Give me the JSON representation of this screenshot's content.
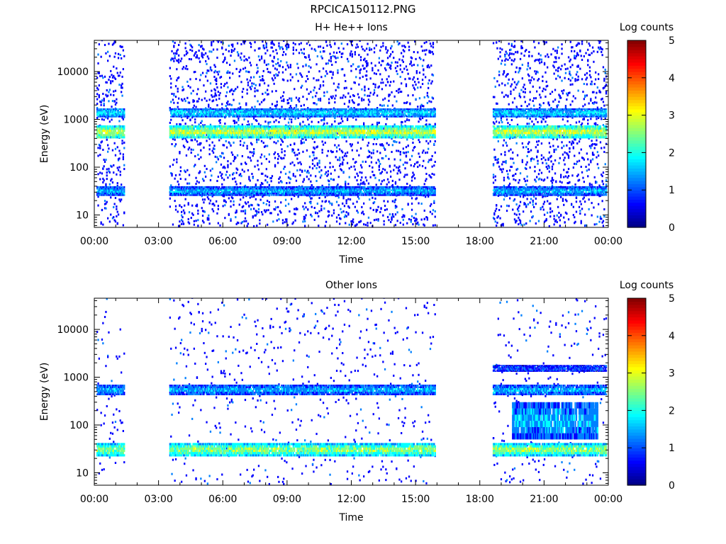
{
  "figure_title": "RPCICA150112.PNG",
  "colors": {
    "colormap": [
      "#000080",
      "#0000ff",
      "#0080ff",
      "#00ffff",
      "#80ff80",
      "#ffff00",
      "#ff8000",
      "#ff0000",
      "#800000"
    ],
    "background": "#ffffff",
    "axis": "#000000"
  },
  "chart_data": [
    {
      "type": "heatmap",
      "title": "H+ He++ Ions",
      "xlabel": "Time",
      "ylabel": "Energy (eV)",
      "x_tick_labels": [
        "00:00",
        "03:00",
        "06:00",
        "09:00",
        "12:00",
        "15:00",
        "18:00",
        "21:00",
        "00:00"
      ],
      "x_range_hours": [
        0,
        24
      ],
      "y_scale": "log",
      "y_range": [
        5.5,
        45000
      ],
      "y_tick_labels": [
        "10",
        "100",
        "1000",
        "10000"
      ],
      "colorbar": {
        "label": "Log counts",
        "range": [
          0,
          5
        ],
        "tick_labels": [
          "0",
          "1",
          "2",
          "3",
          "4",
          "5"
        ]
      },
      "data_gaps_hours": [
        [
          1.4,
          3.5
        ],
        [
          15.9,
          18.6
        ]
      ],
      "populations": [
        {
          "e_min": 400,
          "e_max": 750,
          "level": 3.0,
          "hours": [
            [
              0.1,
              1.4
            ],
            [
              3.5,
              15.9
            ],
            [
              18.6,
              23.9
            ]
          ]
        },
        {
          "e_min": 1100,
          "e_max": 1700,
          "level": 1.8,
          "hours": [
            [
              0.1,
              1.4
            ],
            [
              3.5,
              15.9
            ],
            [
              18.6,
              23.9
            ]
          ]
        },
        {
          "e_min": 25,
          "e_max": 40,
          "level": 1.5,
          "hours": [
            [
              0.1,
              1.4
            ],
            [
              3.5,
              15.9
            ],
            [
              18.6,
              23.9
            ]
          ]
        }
      ]
    },
    {
      "type": "heatmap",
      "title": "Other Ions",
      "xlabel": "Time",
      "ylabel": "Energy (eV)",
      "x_tick_labels": [
        "00:00",
        "03:00",
        "06:00",
        "09:00",
        "12:00",
        "15:00",
        "18:00",
        "21:00",
        "00:00"
      ],
      "x_range_hours": [
        0,
        24
      ],
      "y_scale": "log",
      "y_range": [
        5.5,
        45000
      ],
      "y_tick_labels": [
        "10",
        "100",
        "1000",
        "10000"
      ],
      "colorbar": {
        "label": "Log counts",
        "range": [
          0,
          5
        ],
        "tick_labels": [
          "0",
          "1",
          "2",
          "3",
          "4",
          "5"
        ]
      },
      "data_gaps_hours": [
        [
          1.4,
          3.5
        ],
        [
          15.9,
          18.6
        ]
      ],
      "populations": [
        {
          "e_min": 22,
          "e_max": 42,
          "level": 2.7,
          "hours": [
            [
              0.1,
              1.4
            ],
            [
              3.5,
              15.9
            ],
            [
              18.6,
              23.9
            ]
          ]
        },
        {
          "e_min": 420,
          "e_max": 700,
          "level": 1.5,
          "hours": [
            [
              0.1,
              1.4
            ],
            [
              3.5,
              15.9
            ],
            [
              18.6,
              23.9
            ]
          ]
        },
        {
          "e_min": 1300,
          "e_max": 1800,
          "level": 1.0,
          "hours": [
            [
              18.6,
              23.9
            ]
          ]
        },
        {
          "e_min": 50,
          "e_max": 300,
          "level": 1.6,
          "hours": [
            [
              19.5,
              23.5
            ]
          ]
        }
      ]
    }
  ]
}
